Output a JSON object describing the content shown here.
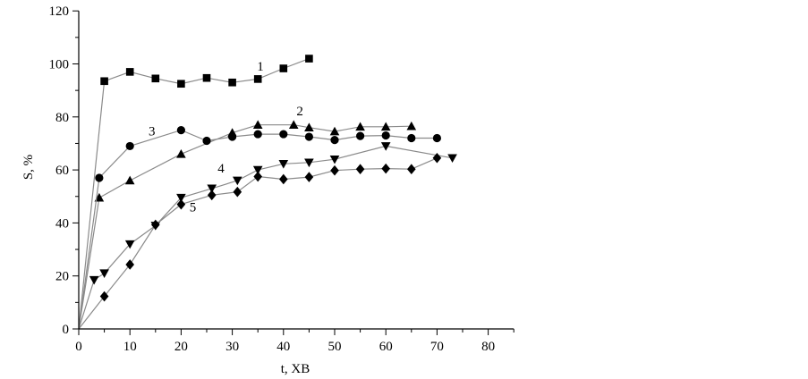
{
  "chart_data": {
    "type": "line",
    "xlabel": "t, ХВ",
    "ylabel": "S, %",
    "xlim": [
      0,
      85
    ],
    "ylim": [
      0,
      120
    ],
    "xticks": [
      0,
      10,
      20,
      30,
      40,
      50,
      60,
      70,
      80
    ],
    "yticks": [
      0,
      20,
      40,
      60,
      80,
      100,
      120
    ],
    "grid": false,
    "series": [
      {
        "name": "1",
        "marker": "square",
        "points": [
          [
            0,
            0
          ],
          [
            5,
            93.5
          ],
          [
            10,
            97
          ],
          [
            15,
            94.5
          ],
          [
            20,
            92.5
          ],
          [
            25,
            94.7
          ],
          [
            30,
            93
          ],
          [
            35,
            94.3
          ],
          [
            40,
            98.3
          ],
          [
            45,
            102
          ]
        ]
      },
      {
        "name": "2",
        "marker": "triangle-up",
        "points": [
          [
            0,
            0
          ],
          [
            4,
            49.5
          ],
          [
            10,
            56
          ],
          [
            20,
            66
          ],
          [
            30,
            74
          ],
          [
            35,
            77
          ],
          [
            42,
            77
          ],
          [
            45,
            76
          ],
          [
            50,
            74.5
          ],
          [
            55,
            76.3
          ],
          [
            60,
            76.3
          ],
          [
            65,
            76.5
          ]
        ]
      },
      {
        "name": "3",
        "marker": "circle",
        "points": [
          [
            0,
            0
          ],
          [
            4,
            57
          ],
          [
            10,
            69
          ],
          [
            20,
            75
          ],
          [
            25,
            71
          ],
          [
            30,
            72.5
          ],
          [
            35,
            73.5
          ],
          [
            40,
            73.5
          ],
          [
            45,
            72.5
          ],
          [
            50,
            71.3
          ],
          [
            55,
            72.8
          ],
          [
            60,
            73
          ],
          [
            65,
            72
          ],
          [
            70,
            72
          ]
        ]
      },
      {
        "name": "4",
        "marker": "triangle-down",
        "points": [
          [
            0,
            0
          ],
          [
            3,
            18.5
          ],
          [
            5,
            21
          ],
          [
            10,
            32
          ],
          [
            15,
            39
          ],
          [
            20,
            49.5
          ],
          [
            26,
            53
          ],
          [
            31,
            56
          ],
          [
            35,
            60
          ],
          [
            40,
            62.3
          ],
          [
            45,
            62.8
          ],
          [
            50,
            64
          ],
          [
            60,
            69
          ],
          [
            73,
            64.5
          ]
        ]
      },
      {
        "name": "5",
        "marker": "diamond",
        "points": [
          [
            0,
            0
          ],
          [
            5,
            12.3
          ],
          [
            10,
            24.3
          ],
          [
            15,
            39.3
          ],
          [
            20,
            47
          ],
          [
            26,
            50.5
          ],
          [
            31,
            51.7
          ],
          [
            35,
            57.5
          ],
          [
            40,
            56.5
          ],
          [
            45,
            57.3
          ],
          [
            50,
            59.8
          ],
          [
            55,
            60.3
          ],
          [
            60,
            60.5
          ],
          [
            65,
            60.3
          ],
          [
            70,
            64.5
          ]
        ]
      }
    ],
    "annotations": [
      {
        "text": "1",
        "x": 35.5,
        "y": 97.5
      },
      {
        "text": "2",
        "x": 43.2,
        "y": 80.6
      },
      {
        "text": "3",
        "x": 14.3,
        "y": 73
      },
      {
        "text": "4",
        "x": 27.8,
        "y": 59
      },
      {
        "text": "5",
        "x": 22.3,
        "y": 44.3
      }
    ]
  }
}
